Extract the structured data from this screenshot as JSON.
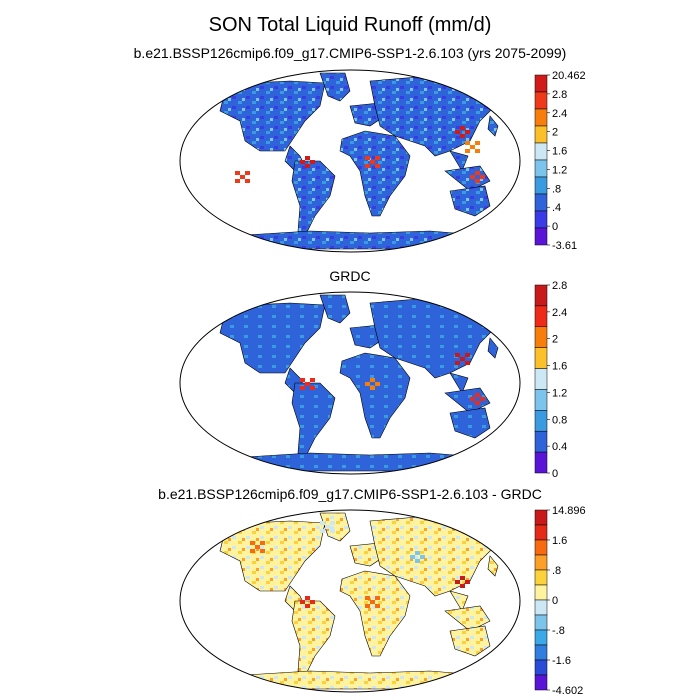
{
  "title": "SON Total Liquid Runoff (mm/d)",
  "panels": [
    {
      "title": "b.e21.BSSP126cmip6.f09_g17.CMIP6-SSP1-2.6.103 (yrs 2075-2099)",
      "colorbar": {
        "labels": [
          "20.462",
          "2.8",
          "2.4",
          "2",
          "1.6",
          "1.2",
          ".8",
          ".4",
          "0",
          "-3.61"
        ],
        "colors": [
          "#d11a1a",
          "#ee3a1a",
          "#f77e0a",
          "#fbbf2a",
          "#cce8f5",
          "#7cc4ec",
          "#3b9be0",
          "#2f63d9",
          "#3a3ae6",
          "#5a14d8"
        ]
      }
    },
    {
      "title": "GRDC",
      "colorbar": {
        "labels": [
          "2.8",
          "2.4",
          "2",
          "1.6",
          "1.2",
          "0.8",
          "0.4",
          "0"
        ],
        "colors": [
          "#c81a1a",
          "#ee2a18",
          "#f77e0a",
          "#fbc02a",
          "#cce8f5",
          "#7cc4ec",
          "#3b9be0",
          "#2f63d9",
          "#5a14d8"
        ]
      }
    },
    {
      "title": "b.e21.BSSP126cmip6.f09_g17.CMIP6-SSP1-2.6.103 - GRDC",
      "colorbar": {
        "labels": [
          "14.896",
          "1.6",
          ".8",
          "0",
          "-.8",
          "-1.6",
          "-4.602"
        ],
        "colors": [
          "#c81a1a",
          "#e62a18",
          "#f76a10",
          "#fba028",
          "#fcd23c",
          "#fff3a0",
          "#cce8f5",
          "#7cc4ec",
          "#3ba8e8",
          "#2f7ee0",
          "#2a4bd8",
          "#5a14d8"
        ]
      }
    }
  ]
}
